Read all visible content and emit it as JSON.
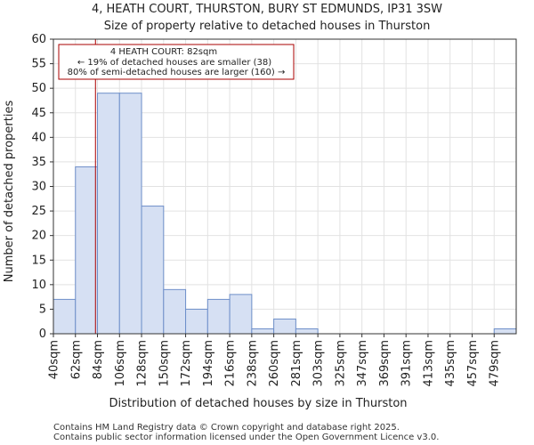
{
  "chart_data": {
    "type": "bar",
    "title": "4, HEATH COURT, THURSTON, BURY ST EDMUNDS, IP31 3SW",
    "subtitle": "Size of property relative to detached houses in Thurston",
    "xlabel": "Distribution of detached houses by size in Thurston",
    "ylabel": "Number of detached properties",
    "categories": [
      "40sqm",
      "62sqm",
      "84sqm",
      "106sqm",
      "128sqm",
      "150sqm",
      "172sqm",
      "194sqm",
      "216sqm",
      "238sqm",
      "260sqm",
      "281sqm",
      "303sqm",
      "325sqm",
      "347sqm",
      "369sqm",
      "391sqm",
      "413sqm",
      "435sqm",
      "457sqm",
      "479sqm"
    ],
    "values": [
      7,
      34,
      49,
      49,
      26,
      9,
      5,
      7,
      8,
      1,
      3,
      1,
      0,
      0,
      0,
      0,
      0,
      0,
      0,
      0,
      1
    ],
    "ylim": [
      0,
      60
    ],
    "yticks": [
      0,
      5,
      10,
      15,
      20,
      25,
      30,
      35,
      40,
      45,
      50,
      55,
      60
    ],
    "grid": true,
    "marker_value": 82,
    "bar_color": "#d6e0f3",
    "bar_edge_color": "#6e8fc9",
    "marker_color": "#aa0000",
    "annotation": {
      "line1": "4 HEATH COURT: 82sqm",
      "line2": "← 19% of detached houses are smaller (38)",
      "line3": "80% of semi-detached houses are larger (160) →"
    }
  },
  "footer": {
    "line1": "Contains HM Land Registry data © Crown copyright and database right 2025.",
    "line2": "Contains public sector information licensed under the Open Government Licence v3.0."
  }
}
